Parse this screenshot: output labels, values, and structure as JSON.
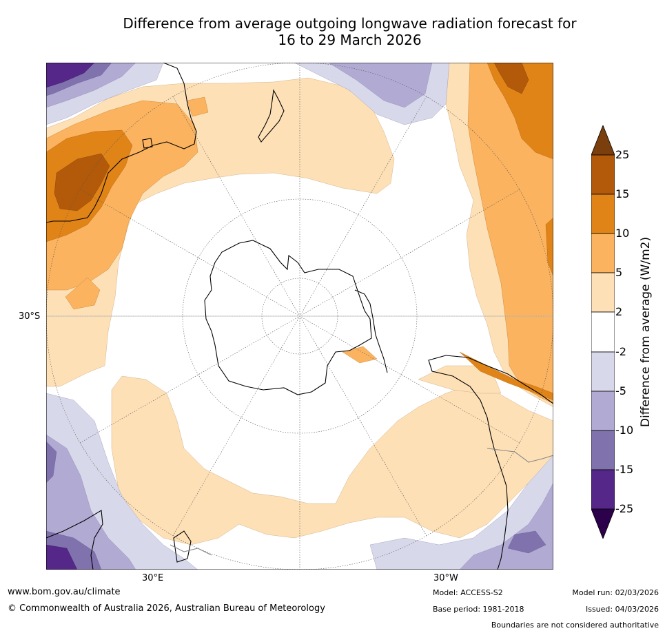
{
  "title": {
    "line1": "Difference from average outgoing longwave radiation forecast for",
    "line2": "16 to 29 March 2026"
  },
  "map": {
    "projection": "south polar stereographic",
    "lat_label": "30°S",
    "lon_labels": [
      "30°E",
      "30°W"
    ]
  },
  "colorbar": {
    "label": "Difference from average (W/m2)",
    "ticks": [
      "25",
      "15",
      "10",
      "5",
      "2",
      "-2",
      "-5",
      "-10",
      "-15",
      "-25"
    ],
    "colors": {
      "above_25": "#7a3f0c",
      "15_to_25": "#b35a0a",
      "10_to_15": "#e08418",
      "5_to_10": "#fbb35f",
      "2_to_5": "#fde0b6",
      "-2_to_2": "#ffffff",
      "-5_to_-2": "#d8d8eb",
      "-10_to_-5": "#b1abd3",
      "-15_to_-10": "#8072ac",
      "-25_to_-15": "#542788",
      "below_-25": "#2d004b"
    }
  },
  "footer": {
    "url": "www.bom.gov.au/climate",
    "copyright": "© Commonwealth of Australia 2026, Australian Bureau of Meteorology",
    "model": "Model: ACCESS-S2",
    "base_period": "Base period: 1981-2018",
    "model_run": "Model run: 02/03/2026",
    "issued": "Issued: 04/03/2026",
    "disclaimer": "Boundaries are not considered authoritative"
  }
}
